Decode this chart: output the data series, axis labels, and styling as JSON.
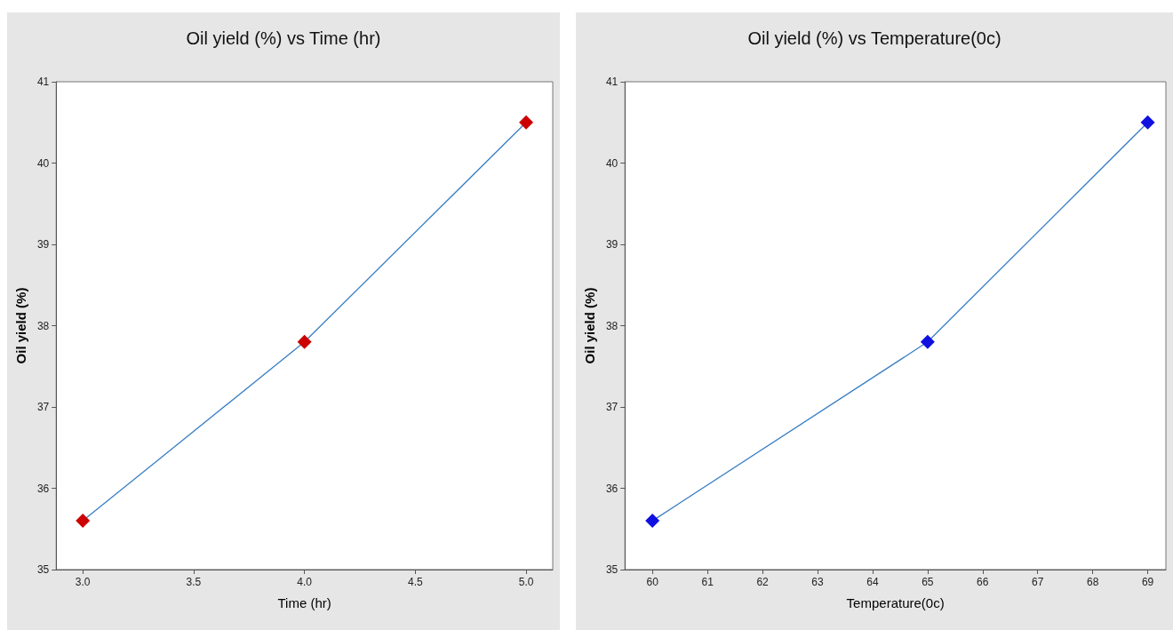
{
  "chart_data": [
    {
      "type": "line",
      "title": "Oil yield (%) vs Time (hr)",
      "xlabel": "Time (hr)",
      "ylabel": "Oil yield (%)",
      "x": [
        3,
        4,
        5
      ],
      "series": [
        {
          "color": "#cc0000",
          "values": [
            35.6,
            37.8,
            40.5
          ]
        }
      ],
      "xlim": [
        2.88,
        5.12
      ],
      "xticks": [
        {
          "value": 3,
          "label": "3.0"
        },
        3.5,
        {
          "value": 4,
          "label": "4.0"
        },
        4.5,
        {
          "value": 5,
          "label": "5.0"
        }
      ],
      "ylim": [
        35,
        41
      ],
      "yticks": [
        35,
        36,
        37,
        38,
        39,
        40,
        41
      ],
      "marker": "diamond",
      "line_style": "solid",
      "grid": false
    },
    {
      "type": "line",
      "title": "Oil yield (%) vs Temperature(0c)",
      "xlabel": "Temperature(0c)",
      "ylabel": "Oil yield (%)",
      "x": [
        60,
        65,
        69
      ],
      "series": [
        {
          "color": "#1010e0",
          "values": [
            35.6,
            37.8,
            40.5
          ]
        }
      ],
      "xlim": [
        59.5,
        69.33
      ],
      "xticks": [
        60,
        61,
        62,
        63,
        64,
        65,
        66,
        67,
        68,
        69
      ],
      "ylim": [
        35,
        41
      ],
      "yticks": [
        35,
        36,
        37,
        38,
        39,
        40,
        41
      ],
      "marker": "diamond",
      "line_style": "solid",
      "grid": false
    }
  ]
}
